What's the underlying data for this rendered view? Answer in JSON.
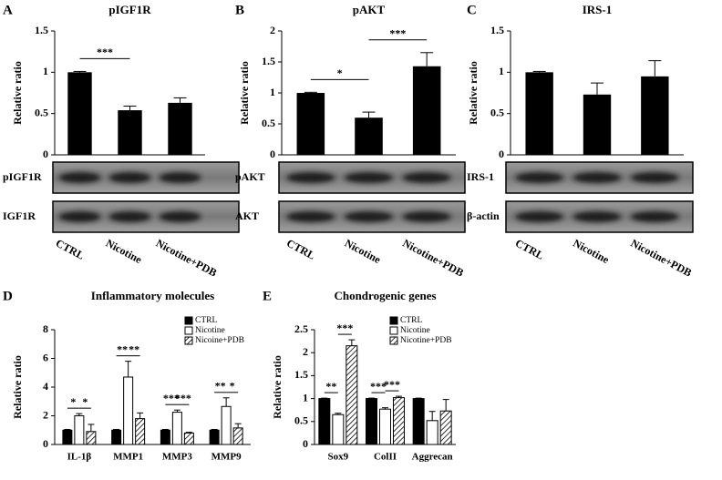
{
  "chart_data": [
    {
      "type": "bar",
      "panel": "A",
      "title": "pIGF1R",
      "y_label": "Relative ratio",
      "categories": [
        "CTRL",
        "Nicotine",
        "Nicotine+PDB"
      ],
      "values": [
        1.0,
        0.54,
        0.63
      ],
      "errors": [
        0.01,
        0.05,
        0.06
      ],
      "color": "#000000",
      "ylim": [
        0,
        1.5
      ],
      "yticks": [
        0,
        0.5,
        1,
        1.5
      ],
      "grid": false,
      "significance": [
        {
          "label": "***",
          "from": 0,
          "to": 1
        }
      ],
      "blots": [
        "pIGF1R",
        "IGF1R"
      ]
    },
    {
      "type": "bar",
      "panel": "B",
      "title": "pAKT",
      "y_label": "Relative ratio",
      "categories": [
        "CTRL",
        "Nicotine",
        "Nicotine+PDB"
      ],
      "values": [
        1.0,
        0.6,
        1.43
      ],
      "errors": [
        0.01,
        0.09,
        0.22
      ],
      "color": "#000000",
      "ylim": [
        0,
        2
      ],
      "yticks": [
        0,
        0.5,
        1,
        1.5,
        2
      ],
      "grid": false,
      "significance": [
        {
          "label": "*",
          "from": 0,
          "to": 1
        },
        {
          "label": "***",
          "from": 1,
          "to": 2
        }
      ],
      "blots": [
        "pAKT",
        "AKT"
      ]
    },
    {
      "type": "bar",
      "panel": "C",
      "title": "IRS-1",
      "y_label": "Relative ratio",
      "categories": [
        "CTRL",
        "Nicotine",
        "Nicotine+PDB"
      ],
      "values": [
        1.0,
        0.73,
        0.95
      ],
      "errors": [
        0.01,
        0.14,
        0.19
      ],
      "color": "#000000",
      "ylim": [
        0,
        1.5
      ],
      "yticks": [
        0,
        0.5,
        1,
        1.5
      ],
      "grid": false,
      "significance": [],
      "blots": [
        "IRS-1",
        "β-actin"
      ]
    },
    {
      "type": "grouped_bar",
      "panel": "D",
      "title": "Inflammatory molecules",
      "y_label": "Relative ratio",
      "categories": [
        "IL-1β",
        "MMP1",
        "MMP3",
        "MMP9"
      ],
      "series": [
        {
          "name": "CTRL",
          "color": "#000000",
          "values": [
            1,
            1,
            1,
            1
          ],
          "errors": [
            0.05,
            0.05,
            0.05,
            0.05
          ]
        },
        {
          "name": "Nicotine",
          "color": "#ffffff",
          "values": [
            2.0,
            4.7,
            2.25,
            2.65
          ],
          "errors": [
            0.15,
            1.1,
            0.15,
            0.6
          ]
        },
        {
          "name": "Nicoine+PDB",
          "color": "#ffffff",
          "hatch": true,
          "values": [
            0.9,
            1.8,
            0.8,
            1.15
          ],
          "errors": [
            0.5,
            0.4,
            0.05,
            0.3
          ]
        }
      ],
      "ylim": [
        0,
        8
      ],
      "yticks": [
        0,
        2,
        4,
        6,
        8
      ],
      "grid": false,
      "legend": "upper right",
      "significance": [
        {
          "label": "*",
          "category": 0,
          "from": 0,
          "to": 1
        },
        {
          "label": "*",
          "category": 0,
          "from": 1,
          "to": 2
        },
        {
          "label": "**",
          "category": 1,
          "from": 0,
          "to": 1
        },
        {
          "label": "**",
          "category": 1,
          "from": 1,
          "to": 2
        },
        {
          "label": "***",
          "category": 2,
          "from": 0,
          "to": 1
        },
        {
          "label": "***",
          "category": 2,
          "from": 1,
          "to": 2
        },
        {
          "label": "**",
          "category": 3,
          "from": 0,
          "to": 1
        },
        {
          "label": "*",
          "category": 3,
          "from": 1,
          "to": 2
        }
      ]
    },
    {
      "type": "grouped_bar",
      "panel": "E",
      "title": "Chondrogenic genes",
      "y_label": "Relative ratio",
      "categories": [
        "Sox9",
        "ColII",
        "Aggrecan"
      ],
      "series": [
        {
          "name": "CTRL",
          "color": "#000000",
          "values": [
            1,
            1,
            1
          ],
          "errors": [
            0.01,
            0.01,
            0.01
          ]
        },
        {
          "name": "Nicotine",
          "color": "#ffffff",
          "values": [
            0.65,
            0.77,
            0.52
          ],
          "errors": [
            0.03,
            0.03,
            0.2
          ]
        },
        {
          "name": "Nicotine+PDB",
          "color": "#ffffff",
          "hatch": true,
          "values": [
            2.15,
            1.02,
            0.73
          ],
          "errors": [
            0.13,
            0.03,
            0.25
          ]
        }
      ],
      "ylim": [
        0,
        2.5
      ],
      "yticks": [
        0,
        0.5,
        1,
        1.5,
        2,
        2.5
      ],
      "grid": false,
      "legend": "upper right",
      "significance": [
        {
          "label": "**",
          "category": 0,
          "from": 0,
          "to": 1
        },
        {
          "label": "***",
          "category": 0,
          "from": 1,
          "to": 2
        },
        {
          "label": "***",
          "category": 1,
          "from": 0,
          "to": 1
        },
        {
          "label": "***",
          "category": 1,
          "from": 1,
          "to": 2
        }
      ]
    }
  ]
}
